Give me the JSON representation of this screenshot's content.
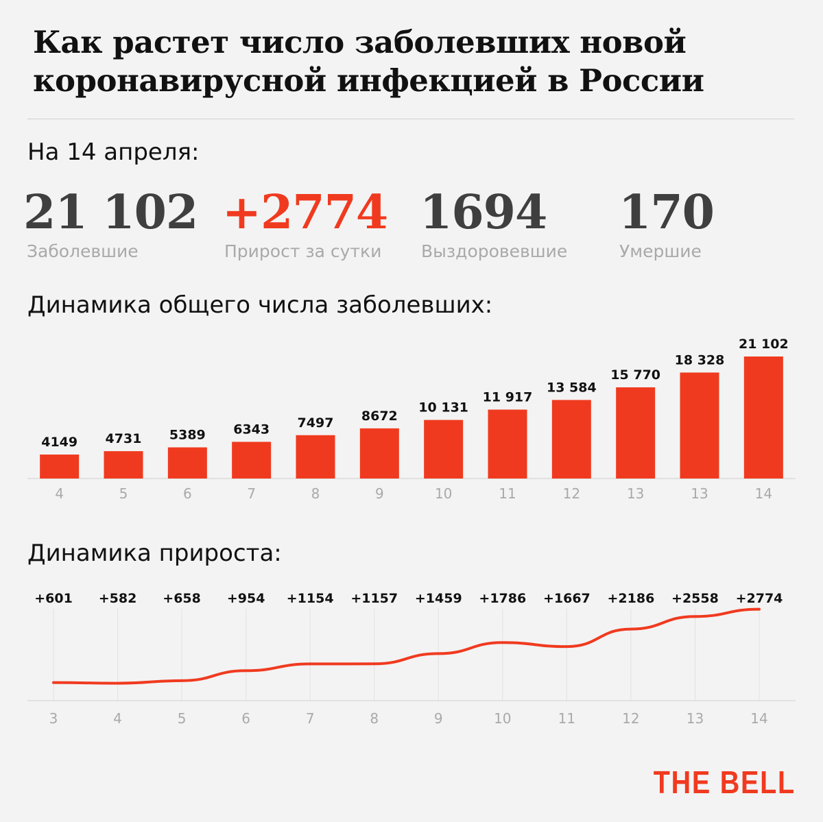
{
  "title": {
    "line1": "Как растет число заболевших новой",
    "line2": "коронавирусной инфекцией в России"
  },
  "date_label": "На 14 апреля:",
  "stats": [
    {
      "value": "21 102",
      "label": "Заболевшие"
    },
    {
      "value": "+2774",
      "label": "Прирост за сутки"
    },
    {
      "value": "1694",
      "label": "Выздоровевшие"
    },
    {
      "value": "170",
      "label": "Умершие"
    }
  ],
  "colors": {
    "accent": "#f03a1f",
    "stat_number": "#3f3f3f",
    "muted_label": "#a9a9a9",
    "background": "#f3f3f3"
  },
  "section_total_label": "Динамика общего числа заболевших:",
  "section_growth_label": "Динамика прироста:",
  "brand": "THE BELL",
  "chart_data": [
    {
      "type": "bar",
      "categories": [
        "4",
        "5",
        "6",
        "7",
        "8",
        "9",
        "10",
        "11",
        "12",
        "13",
        "13",
        "14"
      ],
      "values": [
        4149,
        4731,
        5389,
        6343,
        7497,
        8672,
        10131,
        11917,
        13584,
        15770,
        18328,
        21102
      ],
      "value_labels": [
        "4149",
        "4731",
        "5389",
        "6343",
        "7497",
        "8672",
        "10 131",
        "11 917",
        "13 584",
        "15 770",
        "18 328",
        "21 102"
      ],
      "title": "Динамика общего числа заболевших:",
      "color": "#f03a1f",
      "grid": false
    },
    {
      "type": "line",
      "categories": [
        "3",
        "4",
        "5",
        "6",
        "7",
        "8",
        "9",
        "10",
        "11",
        "12",
        "13",
        "14"
      ],
      "values": [
        601,
        582,
        658,
        954,
        1154,
        1157,
        1459,
        1786,
        1667,
        2186,
        2558,
        2774
      ],
      "value_labels": [
        "+601",
        "+582",
        "+658",
        "+954",
        "+1154",
        "+1157",
        "+1459",
        "+1786",
        "+1667",
        "+2186",
        "+2558",
        "+2774"
      ],
      "title": "Динамика прироста:",
      "color": "#f03a1f",
      "grid": true
    }
  ]
}
